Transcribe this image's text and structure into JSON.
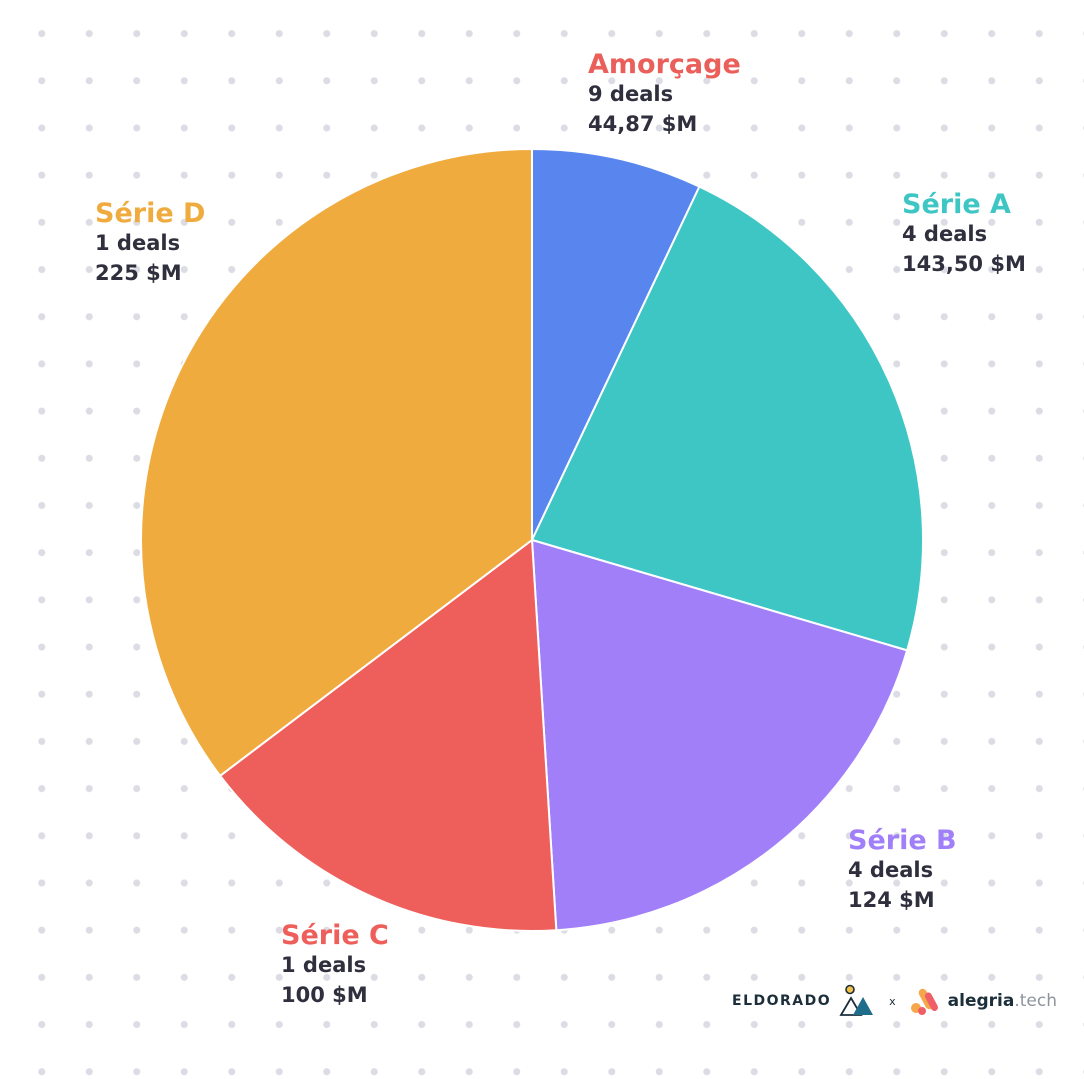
{
  "chart_data": {
    "type": "pie",
    "slices": [
      {
        "label": "Amorçage",
        "deals": "9 deals",
        "amount": "44,87 $M",
        "value": 44.87,
        "color": "#5886ee"
      },
      {
        "label": "Série A",
        "deals": "4 deals",
        "amount": "143,50 $M",
        "value": 143.5,
        "color": "#3ec6c5"
      },
      {
        "label": "Série B",
        "deals": "4 deals",
        "amount": "124 $M",
        "value": 124,
        "color": "#a07ff8"
      },
      {
        "label": "Série C",
        "deals": "1 deals",
        "amount": "100 $M",
        "value": 100,
        "color": "#ee5f5b"
      },
      {
        "label": "Série D",
        "deals": "1 deals",
        "amount": "225 $M",
        "value": 225,
        "color": "#f0ab3e"
      }
    ]
  },
  "footer": {
    "brand1": "ELDORADO",
    "separator": "x",
    "brand2": "alegria",
    "brand2_suffix": ".tech"
  }
}
